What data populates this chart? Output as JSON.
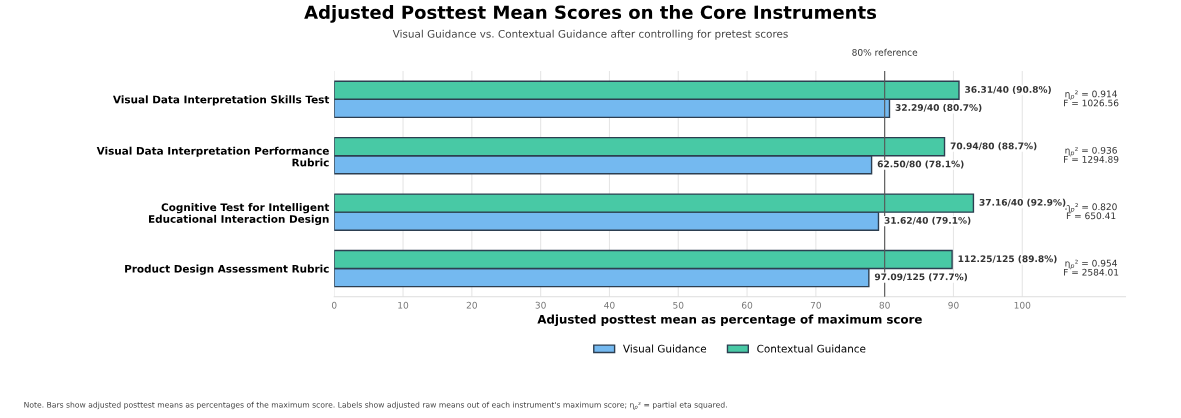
{
  "chart_data": {
    "type": "bar",
    "orientation": "horizontal",
    "title": "Adjusted Posttest Mean Scores on the Core Instruments",
    "subtitle": "Visual Guidance vs. Contextual Guidance after controlling for pretest scores",
    "xlabel": "Adjusted posttest mean as percentage of maximum score",
    "categories": [
      "Visual Data Interpretation Skills Test",
      "Visual Data Interpretation Performance\nRubric",
      "Cognitive Test for Intelligent\nEducational Interaction Design",
      "Product Design Assessment Rubric"
    ],
    "series": [
      {
        "name": "Visual Guidance",
        "color": "#74b9f0",
        "values": [
          80.7,
          78.1,
          79.1,
          77.7
        ],
        "value_labels": [
          "32.29/40 (80.7%)",
          "62.50/80 (78.1%)",
          "31.62/40 (79.1%)",
          "97.09/125 (77.7%)"
        ]
      },
      {
        "name": "Contextual Guidance",
        "color": "#48c9a5",
        "values": [
          90.8,
          88.7,
          92.9,
          89.8
        ],
        "value_labels": [
          "36.31/40 (90.8%)",
          "70.94/80 (88.7%)",
          "37.16/40 (92.9%)",
          "112.25/125 (89.8%)"
        ]
      }
    ],
    "xlim": [
      0,
      115
    ],
    "xticks": [
      0,
      10,
      20,
      30,
      40,
      50,
      60,
      70,
      80,
      90,
      100
    ],
    "grid": "x",
    "legend": "bottom",
    "ref_lines": [
      {
        "axis": "x",
        "value": 80,
        "label": "80% reference",
        "color": "#555555"
      }
    ],
    "annotations": [
      "η$_{p}$² = 0.914\nF = 1026.56",
      "η$_{p}$² = 0.936\nF = 1294.89",
      "η$_{p}$² = 0.820\nF = 650.41",
      "η$_{p}$² = 0.954\nF = 2584.01",
      "Note. Bars show adjusted posttest means as percentages of the maximum score. Labels show adjusted raw means out of each instrument's maximum score; η$_{p}$² = partial eta squared."
    ]
  }
}
